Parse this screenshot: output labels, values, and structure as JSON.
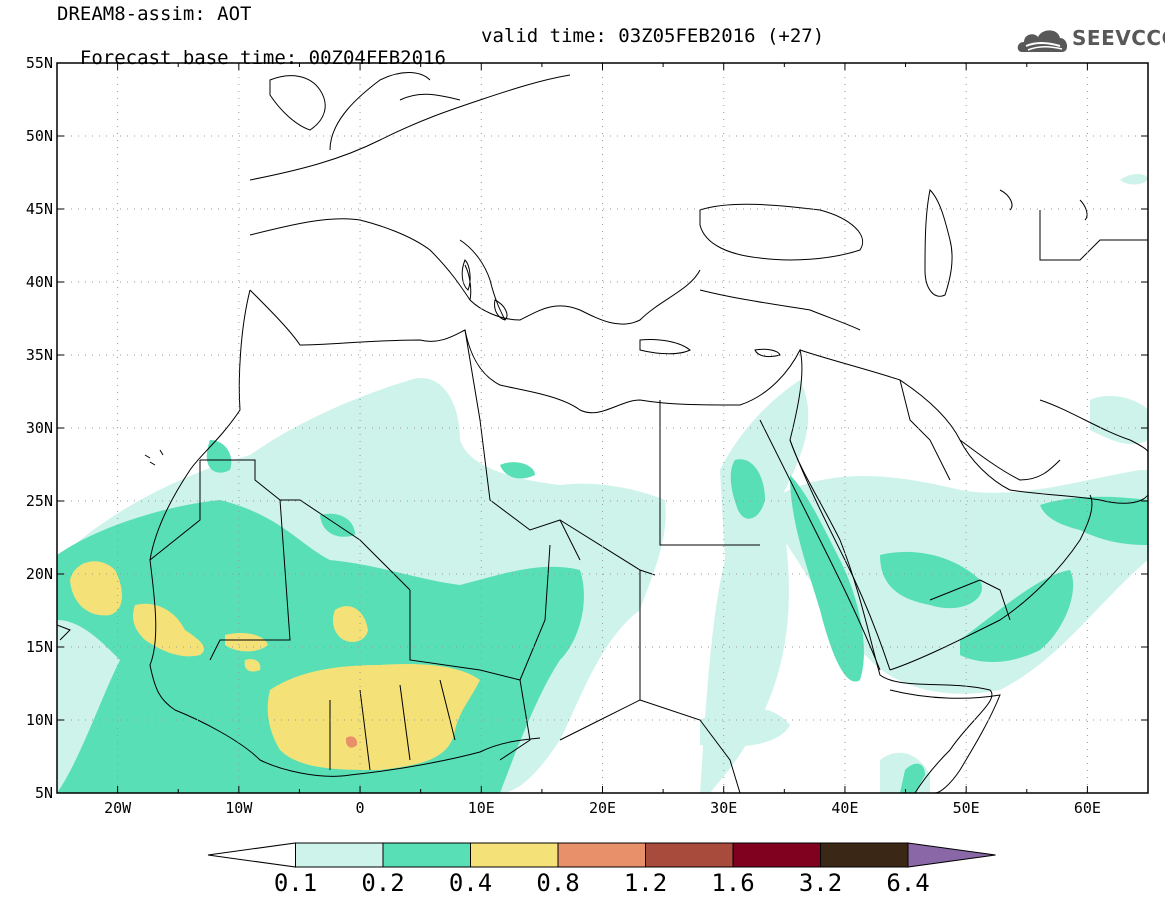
{
  "title": {
    "line1": "DREAM8-assim: AOT",
    "base_time": "Forecast base time: 00Z04FEB2016",
    "valid_time": "valid time: 03Z05FEB2016 (+27)"
  },
  "logo": {
    "text": "SEEVCCC",
    "icon": "cloud-logo-icon",
    "color": "#585858"
  },
  "map": {
    "lat_labels": [
      "55N",
      "50N",
      "45N",
      "40N",
      "35N",
      "30N",
      "25N",
      "20N",
      "15N",
      "10N",
      "5N"
    ],
    "lon_labels": [
      "20W",
      "10W",
      "0",
      "10E",
      "20E",
      "30E",
      "40E",
      "50E",
      "60E"
    ],
    "lon_range": [
      -25,
      65
    ],
    "lat_range": [
      5,
      55
    ],
    "grid": "dotted"
  },
  "legend": {
    "labels": [
      "0.1",
      "0.2",
      "0.4",
      "0.8",
      "1.2",
      "1.6",
      "3.2",
      "6.4"
    ],
    "colors": [
      "#ffffff",
      "#cef3ea",
      "#59dfb6",
      "#f4e278",
      "#e8906a",
      "#a84b3c",
      "#800020",
      "#3b2716",
      "#8a68a8"
    ]
  }
}
